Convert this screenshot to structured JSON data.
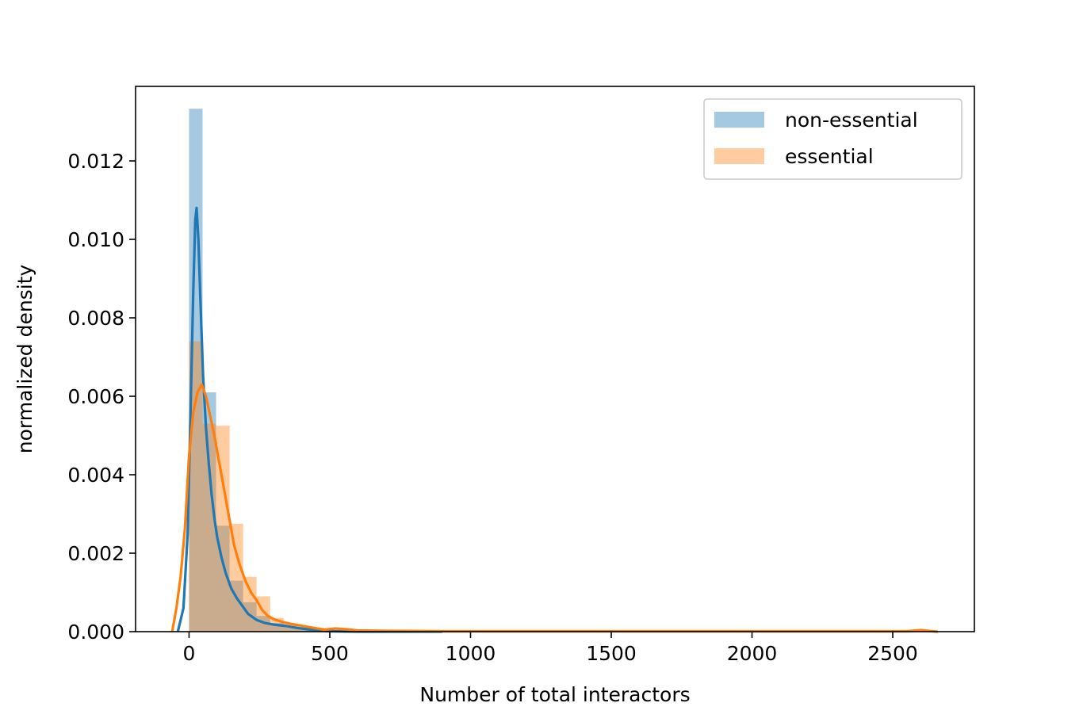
{
  "chart_data": {
    "type": "histogram",
    "title": "",
    "xlabel": "Number of total interactors",
    "ylabel": "normalized density",
    "xlim": [
      -190,
      2790
    ],
    "ylim": [
      0,
      0.0139
    ],
    "xticks": [
      0,
      500,
      1000,
      1500,
      2000,
      2500
    ],
    "xtick_labels": [
      "0",
      "500",
      "1000",
      "1500",
      "2000",
      "2500"
    ],
    "yticks": [
      0.0,
      0.002,
      0.004,
      0.006,
      0.008,
      0.01,
      0.012
    ],
    "ytick_labels": [
      "0.000",
      "0.002",
      "0.004",
      "0.006",
      "0.008",
      "0.010",
      "0.012"
    ],
    "grid": false,
    "legend_position": "top-right",
    "series": [
      {
        "name": "non-essential",
        "color": "#1f77b4",
        "bins": [
          {
            "x0": 0,
            "x1": 48,
            "v": 0.01333
          },
          {
            "x0": 48,
            "x1": 96,
            "v": 0.0061
          },
          {
            "x0": 96,
            "x1": 144,
            "v": 0.0027
          },
          {
            "x0": 144,
            "x1": 192,
            "v": 0.0013
          },
          {
            "x0": 192,
            "x1": 240,
            "v": 0.00075
          },
          {
            "x0": 240,
            "x1": 288,
            "v": 0.0004
          },
          {
            "x0": 288,
            "x1": 336,
            "v": 0.00022
          },
          {
            "x0": 336,
            "x1": 384,
            "v": 0.00015
          },
          {
            "x0": 384,
            "x1": 432,
            "v": 0.0001
          },
          {
            "x0": 432,
            "x1": 480,
            "v": 6e-05
          },
          {
            "x0": 480,
            "x1": 600,
            "v": 3e-05
          },
          {
            "x0": 600,
            "x1": 800,
            "v": 1e-05
          }
        ],
        "kde": [
          [
            -40,
            0.0
          ],
          [
            -20,
            0.0006
          ],
          [
            -5,
            0.0025
          ],
          [
            5,
            0.0055
          ],
          [
            15,
            0.0087
          ],
          [
            22,
            0.0105
          ],
          [
            27,
            0.0108
          ],
          [
            33,
            0.01
          ],
          [
            40,
            0.0085
          ],
          [
            50,
            0.0065
          ],
          [
            60,
            0.0052
          ],
          [
            70,
            0.0043
          ],
          [
            80,
            0.0035
          ],
          [
            90,
            0.0029
          ],
          [
            100,
            0.0024
          ],
          [
            115,
            0.0019
          ],
          [
            130,
            0.0015
          ],
          [
            150,
            0.0011
          ],
          [
            170,
            0.00085
          ],
          [
            190,
            0.00065
          ],
          [
            210,
            0.00045
          ],
          [
            240,
            0.0003
          ],
          [
            270,
            0.00022
          ],
          [
            300,
            0.00018
          ],
          [
            340,
            0.00015
          ],
          [
            380,
            0.0001
          ],
          [
            420,
            6e-05
          ],
          [
            460,
            3e-05
          ],
          [
            500,
            1e-05
          ],
          [
            600,
            0.0
          ],
          [
            900,
            0.0
          ]
        ]
      },
      {
        "name": "essential",
        "color": "#ff7f0e",
        "bins": [
          {
            "x0": 0,
            "x1": 48,
            "v": 0.0074
          },
          {
            "x0": 48,
            "x1": 96,
            "v": 0.0053
          },
          {
            "x0": 96,
            "x1": 144,
            "v": 0.00525
          },
          {
            "x0": 144,
            "x1": 192,
            "v": 0.00275
          },
          {
            "x0": 192,
            "x1": 240,
            "v": 0.0014
          },
          {
            "x0": 240,
            "x1": 288,
            "v": 0.0009
          },
          {
            "x0": 288,
            "x1": 336,
            "v": 0.00035
          },
          {
            "x0": 336,
            "x1": 384,
            "v": 0.0002
          },
          {
            "x0": 384,
            "x1": 432,
            "v": 0.00015
          },
          {
            "x0": 432,
            "x1": 480,
            "v": 0.0001
          },
          {
            "x0": 480,
            "x1": 600,
            "v": 5e-05
          },
          {
            "x0": 600,
            "x1": 900,
            "v": 2e-05
          },
          {
            "x0": 900,
            "x1": 2650,
            "v": 1e-05
          }
        ],
        "kde": [
          [
            -60,
            0.0
          ],
          [
            -45,
            0.0006
          ],
          [
            -30,
            0.0014
          ],
          [
            -15,
            0.0026
          ],
          [
            0,
            0.0045
          ],
          [
            15,
            0.0056
          ],
          [
            30,
            0.0061
          ],
          [
            45,
            0.0063
          ],
          [
            60,
            0.006
          ],
          [
            75,
            0.0055
          ],
          [
            90,
            0.005
          ],
          [
            105,
            0.0044
          ],
          [
            120,
            0.0038
          ],
          [
            140,
            0.003
          ],
          [
            160,
            0.0022
          ],
          [
            180,
            0.0017
          ],
          [
            200,
            0.0013
          ],
          [
            220,
            0.001
          ],
          [
            240,
            0.0008
          ],
          [
            260,
            0.00055
          ],
          [
            280,
            0.0004
          ],
          [
            300,
            0.00032
          ],
          [
            330,
            0.00025
          ],
          [
            360,
            0.0002
          ],
          [
            400,
            0.00015
          ],
          [
            440,
            0.0001
          ],
          [
            480,
            5e-05
          ],
          [
            520,
            8e-05
          ],
          [
            560,
            6e-05
          ],
          [
            600,
            3e-05
          ],
          [
            700,
            2e-05
          ],
          [
            900,
            1e-05
          ],
          [
            1200,
            1e-05
          ],
          [
            1800,
            1e-05
          ],
          [
            2300,
            1e-05
          ],
          [
            2550,
            1e-05
          ],
          [
            2600,
            4e-05
          ],
          [
            2640,
            1e-05
          ],
          [
            2660,
            0.0
          ]
        ]
      }
    ]
  }
}
